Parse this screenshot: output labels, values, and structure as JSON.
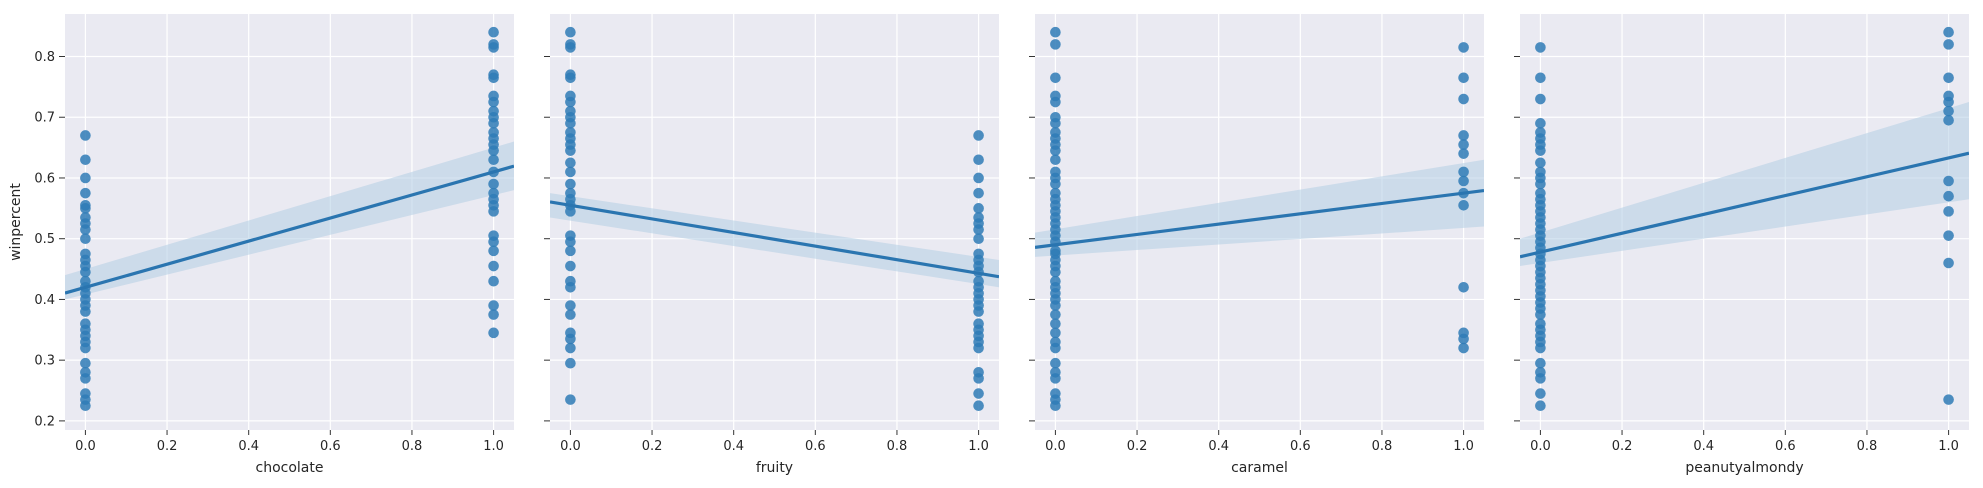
{
  "chart_data": [
    {
      "type": "scatter",
      "xlabel": "chocolate",
      "ylabel": "winpercent",
      "xlim": [
        -0.05,
        1.05
      ],
      "ylim": [
        0.185,
        0.87
      ],
      "xticks": [
        "0.0",
        "0.2",
        "0.4",
        "0.6",
        "0.8",
        "1.0"
      ],
      "yticks": [
        "0.2",
        "0.3",
        "0.4",
        "0.5",
        "0.6",
        "0.7",
        "0.8"
      ],
      "grid": true,
      "points": [
        {
          "x": 0,
          "y": 0.225
        },
        {
          "x": 0,
          "y": 0.235
        },
        {
          "x": 0,
          "y": 0.245
        },
        {
          "x": 0,
          "y": 0.27
        },
        {
          "x": 0,
          "y": 0.28
        },
        {
          "x": 0,
          "y": 0.295
        },
        {
          "x": 0,
          "y": 0.32
        },
        {
          "x": 0,
          "y": 0.33
        },
        {
          "x": 0,
          "y": 0.34
        },
        {
          "x": 0,
          "y": 0.35
        },
        {
          "x": 0,
          "y": 0.36
        },
        {
          "x": 0,
          "y": 0.38
        },
        {
          "x": 0,
          "y": 0.39
        },
        {
          "x": 0,
          "y": 0.4
        },
        {
          "x": 0,
          "y": 0.41
        },
        {
          "x": 0,
          "y": 0.42
        },
        {
          "x": 0,
          "y": 0.43
        },
        {
          "x": 0,
          "y": 0.445
        },
        {
          "x": 0,
          "y": 0.455
        },
        {
          "x": 0,
          "y": 0.465
        },
        {
          "x": 0,
          "y": 0.475
        },
        {
          "x": 0,
          "y": 0.5
        },
        {
          "x": 0,
          "y": 0.515
        },
        {
          "x": 0,
          "y": 0.525
        },
        {
          "x": 0,
          "y": 0.535
        },
        {
          "x": 0,
          "y": 0.55
        },
        {
          "x": 0,
          "y": 0.555
        },
        {
          "x": 0,
          "y": 0.575
        },
        {
          "x": 0,
          "y": 0.6
        },
        {
          "x": 0,
          "y": 0.63
        },
        {
          "x": 0,
          "y": 0.67
        },
        {
          "x": 1,
          "y": 0.345
        },
        {
          "x": 1,
          "y": 0.375
        },
        {
          "x": 1,
          "y": 0.39
        },
        {
          "x": 1,
          "y": 0.43
        },
        {
          "x": 1,
          "y": 0.455
        },
        {
          "x": 1,
          "y": 0.48
        },
        {
          "x": 1,
          "y": 0.495
        },
        {
          "x": 1,
          "y": 0.505
        },
        {
          "x": 1,
          "y": 0.545
        },
        {
          "x": 1,
          "y": 0.555
        },
        {
          "x": 1,
          "y": 0.565
        },
        {
          "x": 1,
          "y": 0.575
        },
        {
          "x": 1,
          "y": 0.59
        },
        {
          "x": 1,
          "y": 0.61
        },
        {
          "x": 1,
          "y": 0.63
        },
        {
          "x": 1,
          "y": 0.645
        },
        {
          "x": 1,
          "y": 0.655
        },
        {
          "x": 1,
          "y": 0.665
        },
        {
          "x": 1,
          "y": 0.675
        },
        {
          "x": 1,
          "y": 0.69
        },
        {
          "x": 1,
          "y": 0.7
        },
        {
          "x": 1,
          "y": 0.71
        },
        {
          "x": 1,
          "y": 0.725
        },
        {
          "x": 1,
          "y": 0.735
        },
        {
          "x": 1,
          "y": 0.765
        },
        {
          "x": 1,
          "y": 0.77
        },
        {
          "x": 1,
          "y": 0.815
        },
        {
          "x": 1,
          "y": 0.82
        },
        {
          "x": 1,
          "y": 0.84
        }
      ],
      "regression": {
        "intercept": 0.42,
        "slope": 0.19
      },
      "ci": {
        "lower": [
          0.4,
          0.58
        ],
        "upper": [
          0.44,
          0.66
        ]
      }
    },
    {
      "type": "scatter",
      "xlabel": "fruity",
      "xlim": [
        -0.05,
        1.05
      ],
      "ylim": [
        0.185,
        0.87
      ],
      "xticks": [
        "0.0",
        "0.2",
        "0.4",
        "0.6",
        "0.8",
        "1.0"
      ],
      "yticks": [
        "0.2",
        "0.3",
        "0.4",
        "0.5",
        "0.6",
        "0.7",
        "0.8"
      ],
      "grid": true,
      "points": [
        {
          "x": 0,
          "y": 0.235
        },
        {
          "x": 0,
          "y": 0.295
        },
        {
          "x": 0,
          "y": 0.32
        },
        {
          "x": 0,
          "y": 0.335
        },
        {
          "x": 0,
          "y": 0.345
        },
        {
          "x": 0,
          "y": 0.375
        },
        {
          "x": 0,
          "y": 0.39
        },
        {
          "x": 0,
          "y": 0.42
        },
        {
          "x": 0,
          "y": 0.43
        },
        {
          "x": 0,
          "y": 0.455
        },
        {
          "x": 0,
          "y": 0.48
        },
        {
          "x": 0,
          "y": 0.495
        },
        {
          "x": 0,
          "y": 0.505
        },
        {
          "x": 0,
          "y": 0.545
        },
        {
          "x": 0,
          "y": 0.555
        },
        {
          "x": 0,
          "y": 0.565
        },
        {
          "x": 0,
          "y": 0.575
        },
        {
          "x": 0,
          "y": 0.59
        },
        {
          "x": 0,
          "y": 0.61
        },
        {
          "x": 0,
          "y": 0.625
        },
        {
          "x": 0,
          "y": 0.645
        },
        {
          "x": 0,
          "y": 0.655
        },
        {
          "x": 0,
          "y": 0.665
        },
        {
          "x": 0,
          "y": 0.675
        },
        {
          "x": 0,
          "y": 0.69
        },
        {
          "x": 0,
          "y": 0.7
        },
        {
          "x": 0,
          "y": 0.71
        },
        {
          "x": 0,
          "y": 0.725
        },
        {
          "x": 0,
          "y": 0.735
        },
        {
          "x": 0,
          "y": 0.765
        },
        {
          "x": 0,
          "y": 0.77
        },
        {
          "x": 0,
          "y": 0.815
        },
        {
          "x": 0,
          "y": 0.82
        },
        {
          "x": 0,
          "y": 0.84
        },
        {
          "x": 1,
          "y": 0.225
        },
        {
          "x": 1,
          "y": 0.245
        },
        {
          "x": 1,
          "y": 0.27
        },
        {
          "x": 1,
          "y": 0.28
        },
        {
          "x": 1,
          "y": 0.32
        },
        {
          "x": 1,
          "y": 0.33
        },
        {
          "x": 1,
          "y": 0.34
        },
        {
          "x": 1,
          "y": 0.35
        },
        {
          "x": 1,
          "y": 0.36
        },
        {
          "x": 1,
          "y": 0.38
        },
        {
          "x": 1,
          "y": 0.39
        },
        {
          "x": 1,
          "y": 0.4
        },
        {
          "x": 1,
          "y": 0.41
        },
        {
          "x": 1,
          "y": 0.42
        },
        {
          "x": 1,
          "y": 0.43
        },
        {
          "x": 1,
          "y": 0.445
        },
        {
          "x": 1,
          "y": 0.455
        },
        {
          "x": 1,
          "y": 0.465
        },
        {
          "x": 1,
          "y": 0.475
        },
        {
          "x": 1,
          "y": 0.5
        },
        {
          "x": 1,
          "y": 0.515
        },
        {
          "x": 1,
          "y": 0.525
        },
        {
          "x": 1,
          "y": 0.535
        },
        {
          "x": 1,
          "y": 0.55
        },
        {
          "x": 1,
          "y": 0.575
        },
        {
          "x": 1,
          "y": 0.6
        },
        {
          "x": 1,
          "y": 0.63
        },
        {
          "x": 1,
          "y": 0.67
        }
      ],
      "regression": {
        "intercept": 0.555,
        "slope": -0.112
      },
      "ci": {
        "lower": [
          0.535,
          0.42
        ],
        "upper": [
          0.575,
          0.465
        ]
      }
    },
    {
      "type": "scatter",
      "xlabel": "caramel",
      "xlim": [
        -0.05,
        1.05
      ],
      "ylim": [
        0.185,
        0.87
      ],
      "xticks": [
        "0.0",
        "0.2",
        "0.4",
        "0.6",
        "0.8",
        "1.0"
      ],
      "yticks": [
        "0.2",
        "0.3",
        "0.4",
        "0.5",
        "0.6",
        "0.7",
        "0.8"
      ],
      "grid": true,
      "points": [
        {
          "x": 0,
          "y": 0.225
        },
        {
          "x": 0,
          "y": 0.235
        },
        {
          "x": 0,
          "y": 0.245
        },
        {
          "x": 0,
          "y": 0.27
        },
        {
          "x": 0,
          "y": 0.28
        },
        {
          "x": 0,
          "y": 0.295
        },
        {
          "x": 0,
          "y": 0.32
        },
        {
          "x": 0,
          "y": 0.33
        },
        {
          "x": 0,
          "y": 0.345
        },
        {
          "x": 0,
          "y": 0.36
        },
        {
          "x": 0,
          "y": 0.375
        },
        {
          "x": 0,
          "y": 0.39
        },
        {
          "x": 0,
          "y": 0.4
        },
        {
          "x": 0,
          "y": 0.41
        },
        {
          "x": 0,
          "y": 0.42
        },
        {
          "x": 0,
          "y": 0.43
        },
        {
          "x": 0,
          "y": 0.445
        },
        {
          "x": 0,
          "y": 0.455
        },
        {
          "x": 0,
          "y": 0.465
        },
        {
          "x": 0,
          "y": 0.475
        },
        {
          "x": 0,
          "y": 0.48
        },
        {
          "x": 0,
          "y": 0.495
        },
        {
          "x": 0,
          "y": 0.505
        },
        {
          "x": 0,
          "y": 0.515
        },
        {
          "x": 0,
          "y": 0.525
        },
        {
          "x": 0,
          "y": 0.535
        },
        {
          "x": 0,
          "y": 0.545
        },
        {
          "x": 0,
          "y": 0.555
        },
        {
          "x": 0,
          "y": 0.565
        },
        {
          "x": 0,
          "y": 0.575
        },
        {
          "x": 0,
          "y": 0.59
        },
        {
          "x": 0,
          "y": 0.6
        },
        {
          "x": 0,
          "y": 0.61
        },
        {
          "x": 0,
          "y": 0.63
        },
        {
          "x": 0,
          "y": 0.645
        },
        {
          "x": 0,
          "y": 0.655
        },
        {
          "x": 0,
          "y": 0.665
        },
        {
          "x": 0,
          "y": 0.675
        },
        {
          "x": 0,
          "y": 0.69
        },
        {
          "x": 0,
          "y": 0.7
        },
        {
          "x": 0,
          "y": 0.725
        },
        {
          "x": 0,
          "y": 0.735
        },
        {
          "x": 0,
          "y": 0.765
        },
        {
          "x": 0,
          "y": 0.82
        },
        {
          "x": 0,
          "y": 0.84
        },
        {
          "x": 1,
          "y": 0.32
        },
        {
          "x": 1,
          "y": 0.335
        },
        {
          "x": 1,
          "y": 0.345
        },
        {
          "x": 1,
          "y": 0.42
        },
        {
          "x": 1,
          "y": 0.555
        },
        {
          "x": 1,
          "y": 0.575
        },
        {
          "x": 1,
          "y": 0.595
        },
        {
          "x": 1,
          "y": 0.61
        },
        {
          "x": 1,
          "y": 0.64
        },
        {
          "x": 1,
          "y": 0.655
        },
        {
          "x": 1,
          "y": 0.67
        },
        {
          "x": 1,
          "y": 0.73
        },
        {
          "x": 1,
          "y": 0.765
        },
        {
          "x": 1,
          "y": 0.815
        }
      ],
      "regression": {
        "intercept": 0.49,
        "slope": 0.085
      },
      "ci": {
        "lower": [
          0.47,
          0.52
        ],
        "upper": [
          0.51,
          0.63
        ]
      }
    },
    {
      "type": "scatter",
      "xlabel": "peanutyalmondy",
      "xlim": [
        -0.05,
        1.05
      ],
      "ylim": [
        0.185,
        0.87
      ],
      "xticks": [
        "0.0",
        "0.2",
        "0.4",
        "0.6",
        "0.8",
        "1.0"
      ],
      "yticks": [
        "0.2",
        "0.3",
        "0.4",
        "0.5",
        "0.6",
        "0.7",
        "0.8"
      ],
      "grid": true,
      "points": [
        {
          "x": 0,
          "y": 0.225
        },
        {
          "x": 0,
          "y": 0.245
        },
        {
          "x": 0,
          "y": 0.27
        },
        {
          "x": 0,
          "y": 0.28
        },
        {
          "x": 0,
          "y": 0.295
        },
        {
          "x": 0,
          "y": 0.32
        },
        {
          "x": 0,
          "y": 0.33
        },
        {
          "x": 0,
          "y": 0.34
        },
        {
          "x": 0,
          "y": 0.35
        },
        {
          "x": 0,
          "y": 0.36
        },
        {
          "x": 0,
          "y": 0.375
        },
        {
          "x": 0,
          "y": 0.385
        },
        {
          "x": 0,
          "y": 0.395
        },
        {
          "x": 0,
          "y": 0.405
        },
        {
          "x": 0,
          "y": 0.415
        },
        {
          "x": 0,
          "y": 0.425
        },
        {
          "x": 0,
          "y": 0.435
        },
        {
          "x": 0,
          "y": 0.445
        },
        {
          "x": 0,
          "y": 0.455
        },
        {
          "x": 0,
          "y": 0.465
        },
        {
          "x": 0,
          "y": 0.475
        },
        {
          "x": 0,
          "y": 0.485
        },
        {
          "x": 0,
          "y": 0.495
        },
        {
          "x": 0,
          "y": 0.505
        },
        {
          "x": 0,
          "y": 0.515
        },
        {
          "x": 0,
          "y": 0.525
        },
        {
          "x": 0,
          "y": 0.535
        },
        {
          "x": 0,
          "y": 0.545
        },
        {
          "x": 0,
          "y": 0.555
        },
        {
          "x": 0,
          "y": 0.565
        },
        {
          "x": 0,
          "y": 0.575
        },
        {
          "x": 0,
          "y": 0.59
        },
        {
          "x": 0,
          "y": 0.6
        },
        {
          "x": 0,
          "y": 0.61
        },
        {
          "x": 0,
          "y": 0.625
        },
        {
          "x": 0,
          "y": 0.645
        },
        {
          "x": 0,
          "y": 0.655
        },
        {
          "x": 0,
          "y": 0.665
        },
        {
          "x": 0,
          "y": 0.675
        },
        {
          "x": 0,
          "y": 0.69
        },
        {
          "x": 0,
          "y": 0.73
        },
        {
          "x": 0,
          "y": 0.765
        },
        {
          "x": 0,
          "y": 0.815
        },
        {
          "x": 1,
          "y": 0.235
        },
        {
          "x": 1,
          "y": 0.46
        },
        {
          "x": 1,
          "y": 0.505
        },
        {
          "x": 1,
          "y": 0.545
        },
        {
          "x": 1,
          "y": 0.57
        },
        {
          "x": 1,
          "y": 0.595
        },
        {
          "x": 1,
          "y": 0.695
        },
        {
          "x": 1,
          "y": 0.71
        },
        {
          "x": 1,
          "y": 0.725
        },
        {
          "x": 1,
          "y": 0.735
        },
        {
          "x": 1,
          "y": 0.765
        },
        {
          "x": 1,
          "y": 0.82
        },
        {
          "x": 1,
          "y": 0.84
        }
      ],
      "regression": {
        "intercept": 0.478,
        "slope": 0.155
      },
      "ci": {
        "lower": [
          0.455,
          0.565
        ],
        "upper": [
          0.5,
          0.725
        ]
      }
    }
  ],
  "colors": {
    "panel_bg": "#eaeaf2",
    "grid": "#ffffff",
    "point": "#2f7bb6",
    "line": "#2a75b0",
    "band": "#b3cde3",
    "text": "#262626",
    "tick": "#333333"
  }
}
